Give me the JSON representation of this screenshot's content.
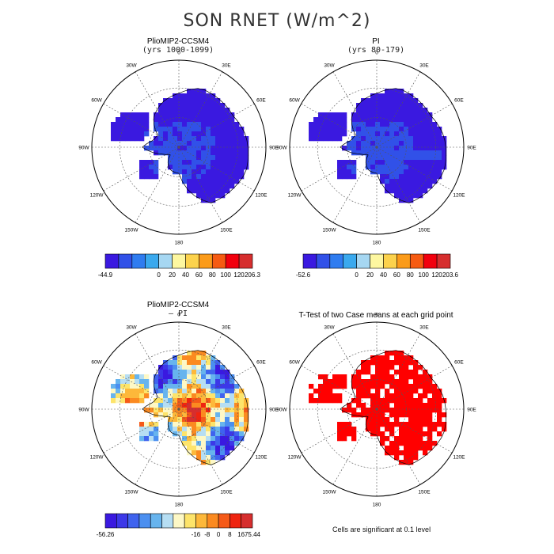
{
  "title": "SON RNET (W/m^2)",
  "panels": [
    {
      "id": "plio",
      "title": "PlioMIP2-CCSM4",
      "subtitle": "(yrs 1000-1099)",
      "legend": {
        "colors": [
          "#3a19e0",
          "#3151e8",
          "#2f7cf0",
          "#3aa9ee",
          "#a6d7f2",
          "#fdf7a0",
          "#fcd24c",
          "#fb9b1a",
          "#f65b12",
          "#f2000e",
          "#d62e2e"
        ],
        "labels": [
          "-44.9",
          "0",
          "20",
          "40",
          "60",
          "80",
          "100",
          "120",
          "206.3"
        ]
      }
    },
    {
      "id": "pi",
      "title": "PI",
      "subtitle": "(yrs 80-179)",
      "legend": {
        "colors": [
          "#3a19e0",
          "#3151e8",
          "#2f7cf0",
          "#3aa9ee",
          "#a6d7f2",
          "#fdf7a0",
          "#fcd24c",
          "#fb9b1a",
          "#f65b12",
          "#f2000e",
          "#d62e2e"
        ],
        "labels": [
          "-52.6",
          "0",
          "20",
          "40",
          "60",
          "80",
          "100",
          "120",
          "203.6"
        ]
      }
    },
    {
      "id": "diff",
      "title": "PlioMIP2-CCSM4",
      "subtitle": "— PI",
      "legend": {
        "colors": [
          "#3a19e0",
          "#3c38e8",
          "#3f63ee",
          "#4b8ff0",
          "#67b4ee",
          "#b6def3",
          "#fdf8c6",
          "#fde46a",
          "#fdb83a",
          "#fb8a20",
          "#f55a18",
          "#ef2410",
          "#d62e2e"
        ],
        "labels": [
          "-56.26",
          "-16",
          "-8",
          "0",
          "8",
          "16",
          "75.44"
        ]
      }
    },
    {
      "id": "ttest",
      "title": "T-Test of two Case means at each grid point"
    }
  ],
  "longitude_labels": [
    "0",
    "30E",
    "60E",
    "90E",
    "120E",
    "150E",
    "180",
    "150W",
    "120W",
    "90W",
    "60W",
    "30W"
  ],
  "footnote": "Cells are significant at 0.1 level",
  "chart_data": [
    {
      "type": "heatmap",
      "projection": "south-polar-stereographic",
      "title": "PlioMIP2-CCSM4 (yrs 1000-1099)",
      "field": "SON RNET (W/m^2)",
      "color_levels": [
        -44.9,
        0,
        20,
        40,
        60,
        80,
        100,
        120,
        206.3
      ],
      "dominant_range": [
        -44.9,
        20
      ]
    },
    {
      "type": "heatmap",
      "projection": "south-polar-stereographic",
      "title": "PI (yrs 80-179)",
      "field": "SON RNET (W/m^2)",
      "color_levels": [
        -52.6,
        0,
        20,
        40,
        60,
        80,
        100,
        120,
        203.6
      ],
      "dominant_range": [
        -52.6,
        20
      ]
    },
    {
      "type": "heatmap",
      "projection": "south-polar-stereographic",
      "title": "PlioMIP2-CCSM4 - PI",
      "field": "SON RNET difference (W/m^2)",
      "color_levels": [
        -56.26,
        -16,
        -8,
        0,
        8,
        16,
        75.44
      ]
    },
    {
      "type": "heatmap",
      "projection": "south-polar-stereographic",
      "title": "T-Test of two Case means at each grid point",
      "significance_level": 0.1,
      "note": "Cells are significant at 0.1 level"
    }
  ]
}
